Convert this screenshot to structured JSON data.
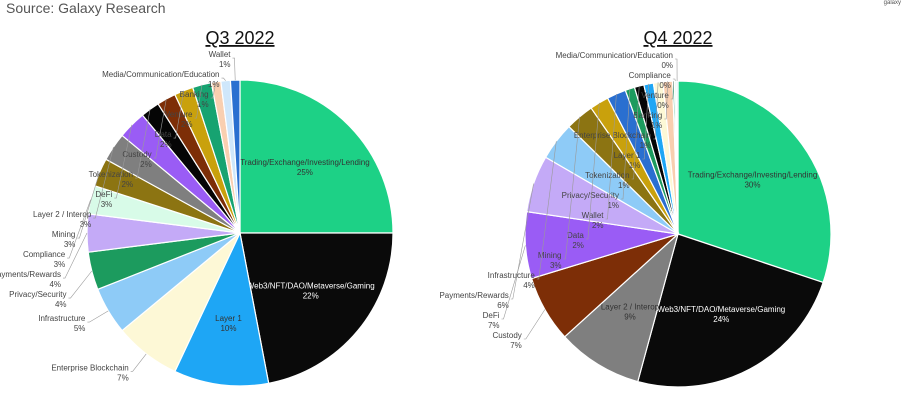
{
  "header": {
    "source": "Source: Galaxy Research",
    "brand": "galaxy"
  },
  "chart_data": [
    {
      "type": "pie",
      "title": "Q3 2022",
      "slices": [
        {
          "label": "Trading/Exchange/Investing/Lending",
          "value": 25,
          "display": "25%",
          "color": "#1dd186"
        },
        {
          "label": "Web3/NFT/DAO/Metaverse/Gaming",
          "value": 22,
          "display": "22%",
          "color": "#0a0a0a"
        },
        {
          "label": "Layer 1",
          "value": 10,
          "display": "10%",
          "color": "#1ea6f5"
        },
        {
          "label": "Enterprise Blockchain",
          "value": 7,
          "display": "7%",
          "color": "#fdf8d6"
        },
        {
          "label": "Infrastructure",
          "value": 5,
          "display": "5%",
          "color": "#8ecbf7"
        },
        {
          "label": "Privacy/Security",
          "value": 4,
          "display": "4%",
          "color": "#1c9b5e"
        },
        {
          "label": "Payments/Rewards",
          "value": 4,
          "display": "4%",
          "color": "#c4aaf7"
        },
        {
          "label": "Compliance",
          "value": 3,
          "display": "3%",
          "color": "#d8fbe8"
        },
        {
          "label": "Mining",
          "value": 3,
          "display": "3%",
          "color": "#8c7412"
        },
        {
          "label": "Layer 2 / Interop",
          "value": 3,
          "display": "3%",
          "color": "#7f7f7f"
        },
        {
          "label": "DeFi",
          "value": 3,
          "display": "3%",
          "color": "#9a5cf5"
        },
        {
          "label": "Tokenization",
          "value": 2,
          "display": "2%",
          "color": "#050505"
        },
        {
          "label": "Custody",
          "value": 2,
          "display": "2%",
          "color": "#7d2e07"
        },
        {
          "label": "Data",
          "value": 2,
          "display": "2%",
          "color": "#c9a10c"
        },
        {
          "label": "Venture",
          "value": 2,
          "display": "2%",
          "color": "#17a371"
        },
        {
          "label": "Banking",
          "value": 1,
          "display": "1%",
          "color": "#f9cfb0"
        },
        {
          "label": "Media/Communication/Education",
          "value": 1,
          "display": "1%",
          "color": "#cfe7fb"
        },
        {
          "label": "Wallet",
          "value": 1,
          "display": "1%",
          "color": "#2a6fd0"
        }
      ]
    },
    {
      "type": "pie",
      "title": "Q4 2022",
      "slices": [
        {
          "label": "Trading/Exchange/Investing/Lending",
          "value": 30,
          "display": "30%",
          "color": "#1dd186"
        },
        {
          "label": "Web3/NFT/DAO/Metaverse/Gaming",
          "value": 24,
          "display": "24%",
          "color": "#0a0a0a"
        },
        {
          "label": "Layer 2 / Interop",
          "value": 9,
          "display": "9%",
          "color": "#7f7f7f"
        },
        {
          "label": "Custody",
          "value": 7,
          "display": "7%",
          "color": "#7d2e07"
        },
        {
          "label": "DeFi",
          "value": 7,
          "display": "7%",
          "color": "#9a5cf5"
        },
        {
          "label": "Payments/Rewards",
          "value": 6,
          "display": "6%",
          "color": "#c4aaf7"
        },
        {
          "label": "Infrastructure",
          "value": 4,
          "display": "4%",
          "color": "#8ecbf7"
        },
        {
          "label": "Mining",
          "value": 3,
          "display": "3%",
          "color": "#8c7412"
        },
        {
          "label": "Data",
          "value": 2,
          "display": "2%",
          "color": "#c9a10c"
        },
        {
          "label": "Wallet",
          "value": 2,
          "display": "2%",
          "color": "#2a6fd0"
        },
        {
          "label": "Privacy/Security",
          "value": 1,
          "display": "1%",
          "color": "#1c9b5e"
        },
        {
          "label": "Tokenization",
          "value": 1,
          "display": "1%",
          "color": "#050505"
        },
        {
          "label": "Layer 1",
          "value": 1,
          "display": "1%",
          "color": "#1ea6f5"
        },
        {
          "label": "Enterprise Blockchain",
          "value": 1,
          "display": "1%",
          "color": "#fdf8d6"
        },
        {
          "label": "Banking",
          "value": 1,
          "display": "1%",
          "color": "#f9cfb0"
        },
        {
          "label": "Venture",
          "value": 0,
          "display": "0%",
          "color": "#17a371"
        },
        {
          "label": "Compliance",
          "value": 0,
          "display": "0%",
          "color": "#d8fbe8"
        },
        {
          "label": "Media/Communication/Education",
          "value": 0,
          "display": "0%",
          "color": "#cfe7fb"
        }
      ]
    }
  ]
}
